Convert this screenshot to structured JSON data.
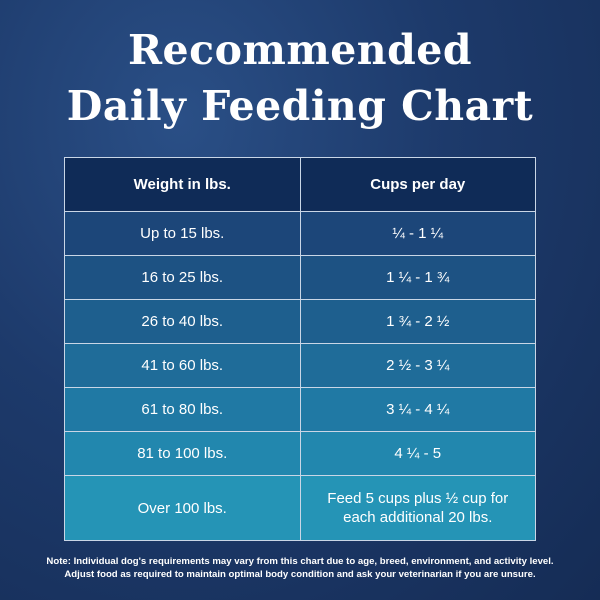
{
  "header": {
    "title": [
      "Recommended",
      "Daily Feeding Chart"
    ]
  },
  "table": {
    "columns": [
      "Weight in lbs.",
      "Cups per day"
    ],
    "rows": [
      [
        "Up to 15 lbs.",
        [
          "¼ - 1 ¼"
        ]
      ],
      [
        "16 to 25 lbs.",
        [
          "1 ¼ - 1 ¾"
        ]
      ],
      [
        "26 to 40 lbs.",
        [
          "1 ¾ - 2 ½"
        ]
      ],
      [
        "41 to 60 lbs.",
        [
          "2 ½ - 3 ¼"
        ]
      ],
      [
        "61 to 80 lbs.",
        [
          "3 ¼ - 4 ¼"
        ]
      ],
      [
        "81 to 100 lbs.",
        [
          "4 ¼ - 5"
        ]
      ],
      [
        "Over 100 lbs.",
        [
          "Feed 5 cups plus ½ cup for",
          "each additional 20 lbs."
        ]
      ]
    ]
  },
  "note": [
    "Note: Individual dog's requirements may vary from this chart due to age, breed, environment, and activity level.",
    "Adjust food as required to maintain optimal body condition and ask your veterinarian if you are unsure."
  ]
}
